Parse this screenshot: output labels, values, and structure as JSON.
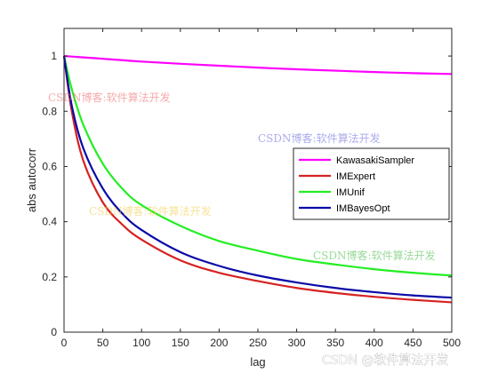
{
  "chart_data": {
    "type": "line",
    "title": "",
    "xlabel": "lag",
    "ylabel": "abs autocorr",
    "xlim": [
      0,
      500
    ],
    "ylim": [
      0,
      1.1
    ],
    "xticks": [
      0,
      50,
      100,
      150,
      200,
      250,
      300,
      350,
      400,
      450,
      500
    ],
    "yticks": [
      0,
      0.2,
      0.4,
      0.6,
      0.8,
      1
    ],
    "grid": false,
    "legend_position": "right",
    "x": [
      0,
      10,
      25,
      50,
      75,
      100,
      150,
      200,
      250,
      300,
      350,
      400,
      450,
      500
    ],
    "series": [
      {
        "name": "KawasakiSampler",
        "color": "#ff00ff",
        "values": [
          1.0,
          0.998,
          0.995,
          0.99,
          0.985,
          0.98,
          0.972,
          0.965,
          0.958,
          0.952,
          0.947,
          0.942,
          0.938,
          0.935
        ]
      },
      {
        "name": "IMExpert",
        "color": "#d62222",
        "values": [
          1.0,
          0.8,
          0.62,
          0.47,
          0.39,
          0.335,
          0.26,
          0.215,
          0.185,
          0.16,
          0.142,
          0.128,
          0.117,
          0.108
        ]
      },
      {
        "name": "IMUnif",
        "color": "#22ee22",
        "values": [
          1.0,
          0.88,
          0.75,
          0.61,
          0.52,
          0.46,
          0.385,
          0.33,
          0.295,
          0.265,
          0.245,
          0.228,
          0.215,
          0.205
        ]
      },
      {
        "name": "IMBayesOpt",
        "color": "#0a0aa8",
        "values": [
          1.0,
          0.82,
          0.665,
          0.52,
          0.43,
          0.37,
          0.29,
          0.24,
          0.205,
          0.18,
          0.16,
          0.145,
          0.133,
          0.125
        ]
      }
    ]
  },
  "watermarks": [
    {
      "text": "CSDN博客:软件算法开发",
      "color": "#ee6666"
    },
    {
      "text": "CSDN博客:软件算法开发",
      "color": "#6666dd"
    },
    {
      "text": "CSDN博客:软件算法开发",
      "color": "#eecc44"
    },
    {
      "text": "CSDN博客:软件算法开发",
      "color": "#44bb44"
    }
  ],
  "corner_watermark": "CSDN @软件算法开发"
}
